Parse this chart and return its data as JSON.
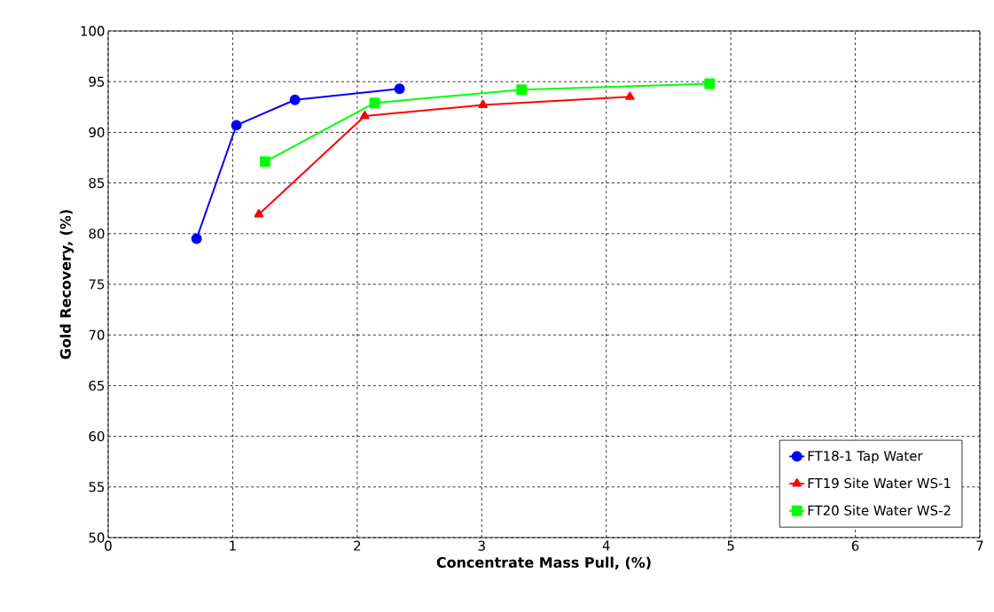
{
  "chart_data": {
    "type": "line",
    "xlabel": "Concentrate Mass Pull, (%)",
    "ylabel": "Gold Recovery, (%)",
    "xlim": [
      0,
      7
    ],
    "ylim": [
      50,
      100
    ],
    "xticks": [
      0,
      1,
      2,
      3,
      4,
      5,
      6,
      7
    ],
    "yticks": [
      50,
      55,
      60,
      65,
      70,
      75,
      80,
      85,
      90,
      95,
      100
    ],
    "grid": true,
    "legend": "bottom right",
    "series": [
      {
        "name": "FT18-1 Tap Water",
        "color": "#0000ff",
        "marker": "circle",
        "x": [
          0.71,
          1.03,
          1.5,
          2.34
        ],
        "values": [
          79.5,
          90.7,
          93.2,
          94.3
        ]
      },
      {
        "name": "FT19 Site Water WS-1",
        "color": "#ff0000",
        "marker": "triangle",
        "x": [
          1.21,
          2.06,
          3.01,
          4.19
        ],
        "values": [
          81.9,
          91.6,
          92.7,
          93.5
        ]
      },
      {
        "name": "FT20 Site Water WS-2",
        "color": "#00ff00",
        "marker": "square",
        "x": [
          1.26,
          2.14,
          3.32,
          4.83
        ],
        "values": [
          87.1,
          92.9,
          94.2,
          94.8
        ]
      }
    ]
  }
}
